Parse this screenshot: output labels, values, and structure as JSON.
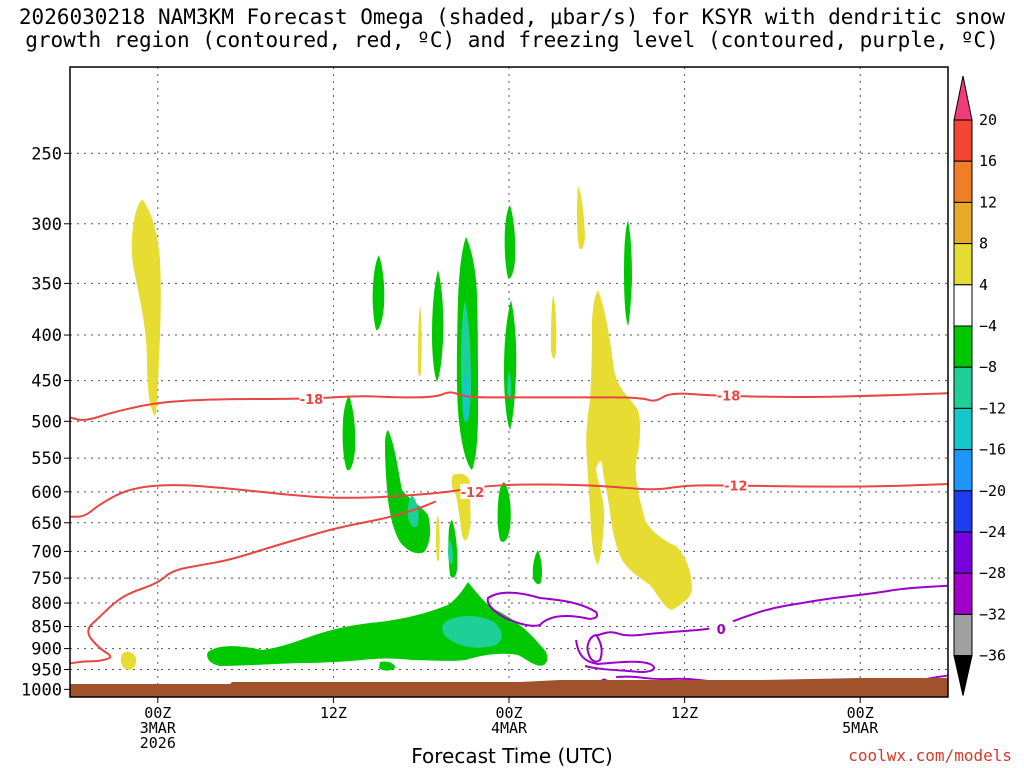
{
  "chart_data": {
    "type": "heatmap",
    "title_line1": "2026030218 NAM3KM Forecast Omega (shaded, μbar/s) for KSYR with dendritic snow",
    "title_line2": "growth region (contoured, red, ºC) and freezing level (contoured, purple, ºC)",
    "xlabel": "Forecast Time (UTC)",
    "x_ticks": [
      {
        "h": 6,
        "lines": [
          "00Z",
          "3MAR",
          "2026"
        ]
      },
      {
        "h": 18,
        "lines": [
          "12Z"
        ]
      },
      {
        "h": 30,
        "lines": [
          "00Z",
          "4MAR"
        ]
      },
      {
        "h": 42,
        "lines": [
          "12Z"
        ]
      },
      {
        "h": 54,
        "lines": [
          "00Z",
          "5MAR"
        ]
      }
    ],
    "xlim_hours": [
      0,
      60
    ],
    "y_ticks": [
      "250",
      "300",
      "350",
      "400",
      "450",
      "500",
      "550",
      "600",
      "650",
      "700",
      "750",
      "800",
      "850",
      "900",
      "950",
      "1000"
    ],
    "ylim_hPa": [
      200,
      1020
    ],
    "y_scale": "log",
    "colorbar": {
      "labels": [
        "20",
        "16",
        "12",
        "8",
        "4",
        "−4",
        "−8",
        "−12",
        "−16",
        "−20",
        "−24",
        "−28",
        "−32",
        "−36"
      ],
      "colors": [
        "#f03c78",
        "#f04632",
        "#f07d28",
        "#e6aa28",
        "#e6dc32",
        "#ffffff",
        "#00c800",
        "#1ecf96",
        "#14c8c8",
        "#1e96ff",
        "#1e3cf0",
        "#7800dc",
        "#a000c8",
        "#a0a0a0",
        "#000000"
      ]
    },
    "contours": [
      {
        "label": "-18",
        "color": "#e84545",
        "points": [
          [
            0,
            495
          ],
          [
            1,
            500
          ],
          [
            3,
            488
          ],
          [
            6,
            476
          ],
          [
            10,
            472
          ],
          [
            16,
            472
          ],
          [
            20,
            468
          ],
          [
            22,
            470
          ],
          [
            25,
            470
          ],
          [
            26,
            462
          ],
          [
            27,
            470
          ],
          [
            30,
            470
          ],
          [
            35,
            470
          ],
          [
            39,
            470
          ],
          [
            40,
            476
          ],
          [
            41,
            464
          ],
          [
            44,
            468
          ],
          [
            50,
            470
          ],
          [
            55,
            468
          ],
          [
            60,
            465
          ]
        ]
      },
      {
        "label": "-12",
        "color": "#e84545",
        "points": [
          [
            0,
            640
          ],
          [
            1,
            640
          ],
          [
            2,
            620
          ],
          [
            4,
            595
          ],
          [
            7,
            588
          ],
          [
            11,
            595
          ],
          [
            15,
            605
          ],
          [
            18,
            610
          ],
          [
            22,
            608
          ],
          [
            26,
            600
          ],
          [
            28,
            592
          ],
          [
            31,
            588
          ],
          [
            36,
            590
          ],
          [
            40,
            598
          ],
          [
            42,
            590
          ],
          [
            45,
            590
          ],
          [
            50,
            592
          ],
          [
            55,
            592
          ],
          [
            60,
            588
          ]
        ]
      },
      {
        "label": "-12",
        "color": "#e84545",
        "points": [
          [
            0,
            935
          ],
          [
            1,
            930
          ],
          [
            2,
            930
          ],
          [
            3,
            920
          ],
          [
            2,
            900
          ],
          [
            1,
            860
          ],
          [
            2,
            830
          ],
          [
            3,
            800
          ],
          [
            4,
            780
          ],
          [
            6,
            760
          ],
          [
            7,
            735
          ],
          [
            9,
            725
          ],
          [
            11,
            715
          ],
          [
            14,
            690
          ],
          [
            16,
            675
          ],
          [
            18,
            660
          ],
          [
            20,
            650
          ],
          [
            22,
            640
          ],
          [
            24,
            625
          ],
          [
            25,
            615
          ]
        ]
      },
      {
        "label": "0",
        "color": "#9a00c8",
        "points": [
          [
            29,
            985
          ],
          [
            30,
            995
          ],
          [
            31,
            990
          ],
          [
            33,
            995
          ],
          [
            35,
            985
          ],
          [
            36,
            975
          ],
          [
            38,
            965
          ],
          [
            40,
            975
          ],
          [
            42,
            972
          ],
          [
            44,
            980
          ],
          [
            46,
            990
          ],
          [
            48,
            990
          ],
          [
            50,
            990
          ],
          [
            52,
            988
          ],
          [
            55,
            990
          ],
          [
            57,
            985
          ],
          [
            59,
            970
          ],
          [
            60,
            965
          ]
        ]
      },
      {
        "label": "0",
        "color": "#9a00c8",
        "points": [
          [
            36,
            870
          ],
          [
            37,
            860
          ],
          [
            38,
            872
          ],
          [
            40,
            865
          ],
          [
            42,
            860
          ],
          [
            44,
            855
          ],
          [
            46,
            830
          ],
          [
            48,
            810
          ],
          [
            50,
            800
          ],
          [
            52,
            790
          ],
          [
            55,
            780
          ],
          [
            57,
            770
          ],
          [
            60,
            765
          ]
        ]
      }
    ]
  }
}
